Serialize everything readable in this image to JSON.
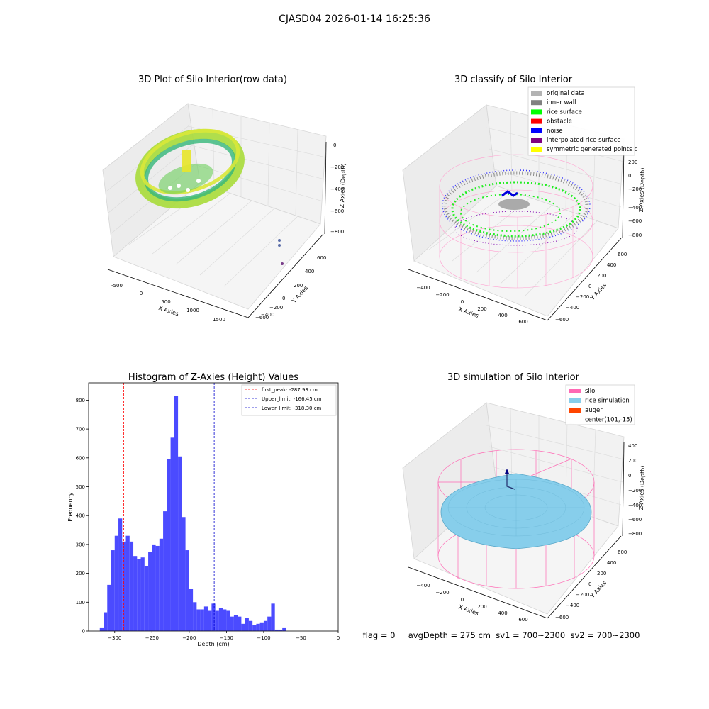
{
  "suptitle": "CJASD04 2026-01-14 16:25:36",
  "status_line": "flag = 0     avgDepth = 275 cm  sv1 = 700~2300  sv2 = 700~2300",
  "colors": {
    "hist_bar": "#4b4bff",
    "first_peak": "#ff0000",
    "limits": "#0000cc",
    "original": "#b3b3b3",
    "inner_wall": "#808080",
    "rice_surface": "#00ff00",
    "obstacle": "#ff0000",
    "noise": "#0000ff",
    "interpolated": "#800080",
    "symmetric": "#ffff00",
    "silo": "#ff69b4",
    "rice_sim": "#87ceeb",
    "auger": "#ff4500"
  },
  "plot1": {
    "title": "3D Plot of Silo Interior(row data)",
    "xlabel": "X Axies",
    "ylabel": "Y Axies",
    "zlabel": "Z Axies (Depth)",
    "xticks": [
      "-500",
      "0",
      "500",
      "1000",
      "1500"
    ],
    "yticks": [
      "600",
      "400",
      "200",
      "0",
      "−200",
      "−400",
      "−600"
    ],
    "zticks": [
      "0",
      "−200",
      "−400",
      "−600",
      "−800"
    ]
  },
  "plot2": {
    "title": "3D classify of Silo Interior",
    "xlabel": "X Axies",
    "ylabel": "Y Axies",
    "zlabel": "Z Axies (Depth)",
    "xticks": [
      "−400",
      "−200",
      "0",
      "200",
      "400",
      "600"
    ],
    "yticks": [
      "600",
      "400",
      "200",
      "0",
      "−200",
      "−400",
      "−600"
    ],
    "zticks": [
      "400",
      "200",
      "0",
      "−200",
      "−400",
      "−600",
      "−800"
    ],
    "legend": [
      {
        "label": "original data",
        "color": "#b3b3b3"
      },
      {
        "label": "inner wall",
        "color": "#808080"
      },
      {
        "label": "rice surface",
        "color": "#00ff00"
      },
      {
        "label": "obstacle",
        "color": "#ff0000"
      },
      {
        "label": "noise",
        "color": "#0000ff"
      },
      {
        "label": "interpolated rice surface",
        "color": "#800080"
      },
      {
        "label": "symmetric generated points",
        "color": "#ffff00"
      }
    ]
  },
  "plot4": {
    "title": "3D simulation of Silo Interior",
    "xlabel": "X Axies",
    "ylabel": "Y Axies",
    "zlabel": "Z Axies (Depth)",
    "xticks": [
      "−400",
      "−200",
      "0",
      "200",
      "400",
      "600"
    ],
    "yticks": [
      "600",
      "400",
      "200",
      "0",
      "−200",
      "−400",
      "−600"
    ],
    "zticks": [
      "400",
      "200",
      "0",
      "−200",
      "−400",
      "−600",
      "−800"
    ],
    "legend": [
      {
        "label": "silo",
        "color": "#ff69b4"
      },
      {
        "label": "rice simulation",
        "color": "#87ceeb"
      },
      {
        "label": "auger",
        "color": "#ff4500"
      },
      {
        "label": "center(101,-15)",
        "color": ""
      }
    ]
  },
  "chart_data": {
    "type": "bar",
    "title": "Histogram of Z-Axies (Height) Values",
    "xlabel": "Depth (cm)",
    "ylabel": "Frequency",
    "xlim": [
      -335,
      0
    ],
    "ylim": [
      0,
      860
    ],
    "bin_start": -320,
    "bin_width": 5,
    "values": [
      10,
      65,
      160,
      280,
      330,
      390,
      310,
      330,
      310,
      260,
      250,
      255,
      225,
      275,
      300,
      295,
      320,
      415,
      595,
      670,
      815,
      605,
      395,
      280,
      145,
      100,
      75,
      75,
      85,
      70,
      95,
      70,
      80,
      75,
      70,
      50,
      55,
      50,
      25,
      45,
      35,
      20,
      25,
      30,
      35,
      50,
      95,
      5,
      5,
      10
    ],
    "xticks": [
      -300,
      -250,
      -200,
      -150,
      -100,
      -50,
      0
    ],
    "yticks": [
      0,
      100,
      200,
      300,
      400,
      500,
      600,
      700,
      800
    ],
    "vlines": [
      {
        "name": "first_peak: -287.93 cm",
        "x": -287.93,
        "color": "#ff0000"
      },
      {
        "name": "Upper_limit: -166.45 cm",
        "x": -166.45,
        "color": "#0000cc"
      },
      {
        "name": "Lower_limit: -318.30 cm",
        "x": -318.3,
        "color": "#0000cc"
      }
    ],
    "legend_position": "top-right",
    "grid": false
  }
}
